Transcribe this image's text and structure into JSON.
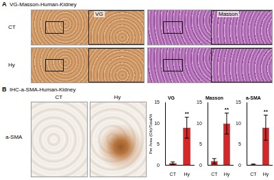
{
  "panels": [
    {
      "letter": "A",
      "title": "VG-Masson-Human-Kidney",
      "rows": [
        "CT",
        "Hy"
      ],
      "columns": [
        "VG",
        "Masson"
      ]
    },
    {
      "letter": "B",
      "title": "IHC-a-SMA-Human-Kidney",
      "rows": [
        "a-SMA"
      ],
      "columns": [
        "CT",
        "Hy"
      ]
    }
  ],
  "chart_data": [
    {
      "type": "bar",
      "title": "VG",
      "ylabel": "Per Area (Ob)/Total/%",
      "categories": [
        "CT",
        "Hy"
      ],
      "values": [
        0.5,
        9
      ],
      "errors": [
        0.3,
        2.5
      ],
      "color": "#d62728",
      "ylim": [
        0,
        15
      ],
      "yticks": [
        0,
        5,
        10,
        15
      ],
      "annotations": [
        {
          "category": "Hy",
          "text": "**"
        }
      ]
    },
    {
      "type": "bar",
      "title": "Masson",
      "categories": [
        "CT",
        "Hy"
      ],
      "values": [
        1,
        10
      ],
      "errors": [
        0.6,
        2.5
      ],
      "color": "#d62728",
      "ylim": [
        0,
        15
      ],
      "yticks": [
        0,
        5,
        10,
        15
      ],
      "annotations": [
        {
          "category": "Hy",
          "text": "**"
        }
      ]
    },
    {
      "type": "bar",
      "title": "a-SMA",
      "categories": [
        "CT",
        "Hy"
      ],
      "values": [
        0.2,
        9
      ],
      "errors": [
        0.1,
        3
      ],
      "color": "#d62728",
      "ylim": [
        0,
        15
      ],
      "yticks": [
        0,
        5,
        10,
        15
      ],
      "annotations": [
        {
          "category": "Hy",
          "text": "**"
        }
      ]
    }
  ]
}
